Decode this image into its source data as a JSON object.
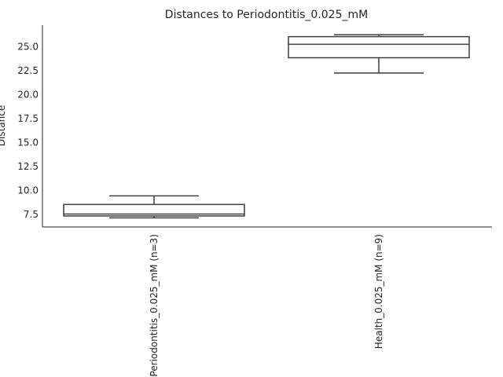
{
  "chart_data": {
    "type": "box",
    "title": "Distances to Periodontitis_0.025_mM",
    "xlabel": "",
    "ylabel": "Distance",
    "categories": [
      "Periodontitis_0.025_mM (n=3)",
      "Health_0.025_mM (n=9)"
    ],
    "boxes": [
      {
        "category": "Periodontitis_0.025_mM (n=3)",
        "whisker_low": 7.2,
        "q1": 7.4,
        "median": 7.6,
        "q3": 8.6,
        "whisker_high": 9.5
      },
      {
        "category": "Health_0.025_mM (n=9)",
        "whisker_low": 22.3,
        "q1": 23.9,
        "median": 25.3,
        "q3": 26.1,
        "whisker_high": 26.3
      }
    ],
    "yticks": [
      7.5,
      10.0,
      12.5,
      15.0,
      17.5,
      20.0,
      22.5,
      25.0
    ],
    "ytick_labels": [
      "7.5",
      "10.0",
      "12.5",
      "15.0",
      "17.5",
      "20.0",
      "22.5",
      "25.0"
    ],
    "ylim": [
      6.25,
      27.3
    ],
    "grid": false,
    "box_color": "#ffffff",
    "line_color": "#3f3f3f"
  }
}
